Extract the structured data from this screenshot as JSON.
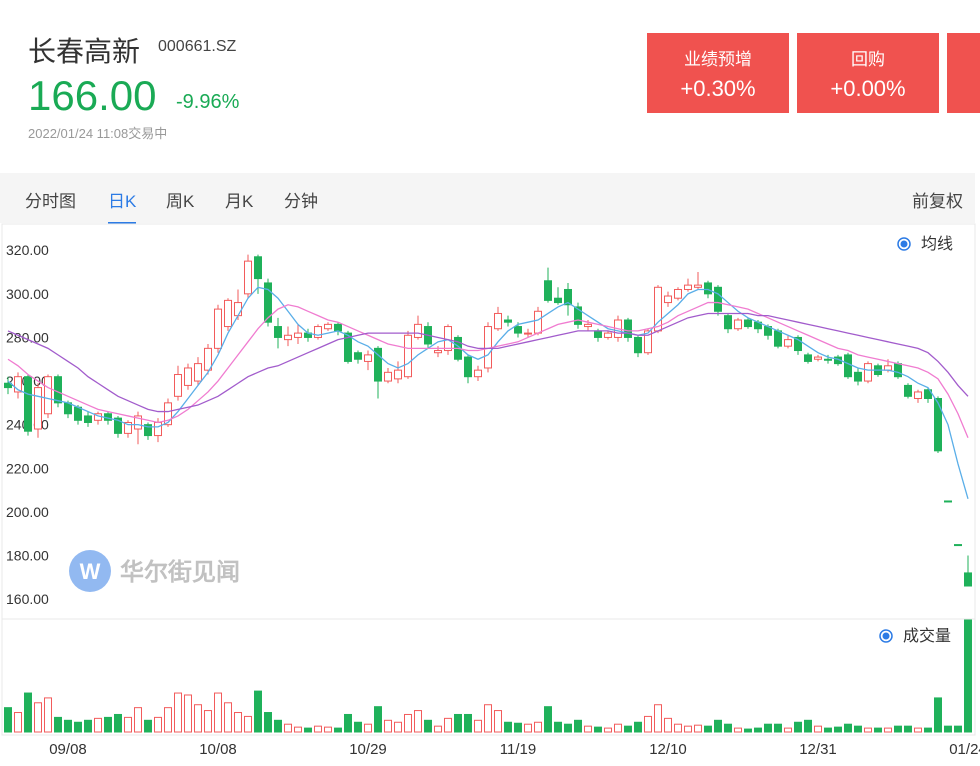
{
  "header": {
    "title": "长春高新",
    "code": "000661.SZ",
    "price": "166.00",
    "change": "-9.96%",
    "time": "2022/01/24 11:08交易中"
  },
  "badges": [
    {
      "label": "业绩预增",
      "value": "+0.30%"
    },
    {
      "label": "回购",
      "value": "+0.00%"
    }
  ],
  "tabs": [
    "分时图",
    "日K",
    "周K",
    "月K",
    "分钟"
  ],
  "active_tab": 1,
  "adjust": "前复权",
  "chart_data": {
    "type": "candlestick",
    "ma_legend": "均线",
    "volume_legend": "成交量",
    "watermark": "华尔街见闻",
    "up_color": "#f25b5b",
    "down_color": "#1fb15a",
    "categories": [
      null,
      null,
      null,
      null,
      null,
      null,
      "09/08",
      null,
      null,
      null,
      null,
      null,
      null,
      null,
      null,
      null,
      null,
      null,
      null,
      null,
      null,
      "10/08",
      null,
      null,
      null,
      null,
      null,
      null,
      null,
      null,
      null,
      null,
      null,
      null,
      null,
      null,
      "10/29",
      null,
      null,
      null,
      null,
      null,
      null,
      null,
      null,
      null,
      null,
      null,
      null,
      null,
      null,
      "11/19",
      null,
      null,
      null,
      null,
      null,
      null,
      null,
      null,
      null,
      null,
      null,
      null,
      null,
      null,
      "12/10",
      null,
      null,
      null,
      null,
      null,
      null,
      null,
      null,
      null,
      null,
      null,
      null,
      null,
      null,
      "12/31",
      null,
      null,
      null,
      null,
      null,
      null,
      null,
      null,
      null,
      null,
      null,
      null,
      null,
      null,
      "01/24"
    ],
    "open": [
      259,
      255,
      262,
      238,
      245,
      262,
      250,
      248,
      244,
      242,
      245,
      243,
      236,
      238,
      240,
      235,
      240,
      253,
      258,
      260,
      265,
      275,
      285,
      290,
      300,
      317,
      305,
      285,
      279,
      280,
      282,
      280,
      284,
      286,
      282,
      273,
      269,
      275,
      260,
      261,
      262,
      280,
      285,
      273,
      274,
      280,
      271,
      262,
      266,
      284,
      288,
      285,
      282,
      282,
      306,
      298,
      302,
      294,
      285,
      283,
      280,
      280,
      288,
      280,
      273,
      283,
      296,
      298,
      302,
      303,
      305,
      303,
      290,
      284,
      288,
      287,
      285,
      283,
      276,
      280,
      272,
      270,
      270,
      271,
      272,
      264,
      260,
      267,
      265,
      268,
      258,
      252,
      256,
      252,
      205,
      185,
      172
    ],
    "close": [
      257,
      262,
      237,
      257,
      262,
      250,
      245,
      242,
      241,
      245,
      242,
      236,
      241,
      244,
      235,
      241,
      250,
      263,
      266,
      268,
      275,
      293,
      297,
      296,
      315,
      307,
      287,
      280,
      281,
      282,
      280,
      285,
      286,
      283,
      269,
      270,
      272,
      260,
      264,
      265,
      281,
      286,
      277,
      274,
      285,
      270,
      262,
      265,
      285,
      291,
      287,
      282,
      282,
      292,
      297,
      296,
      295,
      286,
      286,
      280,
      282,
      288,
      280,
      273,
      283,
      303,
      299,
      302,
      304,
      304,
      300,
      292,
      284,
      288,
      285,
      284,
      281,
      276,
      279,
      274,
      269,
      271,
      270,
      268,
      262,
      260,
      268,
      263,
      267,
      262,
      253,
      255,
      252,
      228,
      205,
      185,
      166
    ],
    "high": [
      262,
      264,
      263,
      259,
      263,
      263,
      251,
      249,
      246,
      246,
      246,
      244,
      242,
      246,
      241,
      243,
      252,
      267,
      268,
      271,
      277,
      295,
      298,
      302,
      318,
      318,
      307,
      289,
      285,
      286,
      284,
      286,
      287,
      287,
      283,
      274,
      274,
      276,
      266,
      269,
      283,
      290,
      287,
      276,
      286,
      281,
      272,
      267,
      287,
      294,
      290,
      287,
      284,
      294,
      312,
      303,
      305,
      296,
      288,
      284,
      283,
      290,
      289,
      281,
      284,
      304,
      301,
      303,
      307,
      310,
      306,
      304,
      291,
      289,
      289,
      288,
      286,
      284,
      281,
      281,
      273,
      272,
      272,
      272,
      273,
      266,
      269,
      268,
      270,
      269,
      259,
      256,
      257,
      253,
      205,
      185,
      180
    ],
    "low": [
      254,
      252,
      235,
      234,
      243,
      248,
      243,
      240,
      239,
      240,
      240,
      234,
      234,
      231,
      233,
      232,
      239,
      251,
      256,
      258,
      263,
      273,
      283,
      288,
      298,
      300,
      285,
      275,
      276,
      277,
      278,
      279,
      283,
      281,
      268,
      268,
      265,
      252,
      259,
      259,
      261,
      279,
      275,
      271,
      272,
      269,
      259,
      260,
      264,
      283,
      285,
      280,
      280,
      281,
      296,
      295,
      290,
      284,
      283,
      278,
      279,
      278,
      278,
      271,
      272,
      282,
      294,
      297,
      301,
      302,
      298,
      290,
      282,
      283,
      284,
      282,
      279,
      275,
      275,
      272,
      268,
      269,
      268,
      267,
      261,
      258,
      259,
      262,
      264,
      261,
      252,
      250,
      250,
      227,
      205,
      185,
      166
    ],
    "volume": [
      25,
      20,
      40,
      30,
      35,
      15,
      12,
      10,
      12,
      14,
      15,
      18,
      15,
      25,
      12,
      15,
      25,
      40,
      38,
      28,
      22,
      40,
      30,
      20,
      16,
      42,
      20,
      12,
      8,
      5,
      4,
      6,
      5,
      4,
      18,
      10,
      8,
      26,
      12,
      10,
      18,
      22,
      12,
      6,
      14,
      18,
      18,
      12,
      28,
      22,
      10,
      9,
      8,
      10,
      26,
      10,
      8,
      12,
      6,
      5,
      4,
      8,
      6,
      10,
      16,
      28,
      14,
      8,
      6,
      7,
      6,
      12,
      8,
      4,
      3,
      4,
      8,
      8,
      4,
      10,
      12,
      6,
      4,
      5,
      8,
      6,
      4,
      4,
      4,
      6,
      6,
      4,
      4,
      35,
      6,
      6,
      115
    ],
    "vlim": [
      0,
      115
    ],
    "lines": [
      {
        "color": "#5aaee8",
        "values": [
          260,
          256,
          254,
          253,
          252,
          251,
          250,
          248,
          246,
          244,
          243,
          242,
          240,
          240,
          239,
          239,
          241,
          246,
          252,
          258,
          264,
          272,
          282,
          290,
          298,
          303,
          302,
          298,
          292,
          286,
          282,
          281,
          282,
          283,
          281,
          278,
          276,
          272,
          268,
          266,
          268,
          272,
          275,
          278,
          279,
          276,
          272,
          270,
          272,
          278,
          283,
          286,
          287,
          288,
          291,
          294,
          296,
          293,
          290,
          287,
          284,
          283,
          282,
          281,
          282,
          287,
          291,
          295,
          300,
          302,
          302,
          300,
          296,
          292,
          289,
          287,
          285,
          283,
          281,
          279,
          276,
          273,
          271,
          270,
          268,
          266,
          265,
          265,
          265,
          264,
          262,
          259,
          257,
          250,
          240,
          222,
          206
        ]
      },
      {
        "color": "#f07cd0",
        "values": [
          270,
          267,
          263,
          260,
          257,
          255,
          253,
          251,
          249,
          247,
          246,
          245,
          244,
          243,
          242,
          241,
          242,
          244,
          247,
          251,
          255,
          260,
          266,
          272,
          278,
          284,
          289,
          293,
          295,
          294,
          292,
          290,
          288,
          287,
          285,
          283,
          281,
          279,
          277,
          276,
          275,
          275,
          275,
          275,
          275,
          275,
          274,
          274,
          275,
          276,
          277,
          278,
          280,
          282,
          284,
          286,
          287,
          288,
          287,
          286,
          285,
          284,
          283,
          283,
          284,
          285,
          287,
          290,
          292,
          294,
          296,
          296,
          295,
          294,
          293,
          291,
          289,
          287,
          285,
          283,
          281,
          279,
          277,
          275,
          274,
          272,
          271,
          270,
          269,
          268,
          267,
          266,
          264,
          261,
          254,
          245,
          234
        ]
      },
      {
        "color": "#a25ccc",
        "values": [
          283,
          281,
          279,
          277,
          275,
          272,
          269,
          266,
          262,
          259,
          256,
          253,
          251,
          249,
          247,
          246,
          246,
          247,
          248,
          249,
          251,
          253,
          256,
          259,
          262,
          264,
          266,
          267,
          269,
          271,
          273,
          275,
          277,
          279,
          280,
          281,
          282,
          282,
          282,
          282,
          282,
          282,
          281,
          280,
          279,
          278,
          276,
          275,
          275,
          275,
          276,
          277,
          278,
          279,
          280,
          281,
          282,
          283,
          283,
          283,
          283,
          282,
          282,
          281,
          281,
          283,
          285,
          287,
          289,
          290,
          291,
          291,
          291,
          291,
          291,
          290,
          290,
          289,
          288,
          287,
          286,
          285,
          284,
          283,
          282,
          281,
          280,
          279,
          278,
          277,
          276,
          275,
          273,
          269,
          264,
          258,
          253
        ]
      }
    ],
    "ylim": [
      152.7,
      330.2
    ],
    "yticks": [
      {
        "value": 320,
        "label": "320.00"
      },
      {
        "value": 300,
        "label": "300.00"
      },
      {
        "value": 280,
        "label": "280.00"
      },
      {
        "value": 260,
        "label": "260.00"
      },
      {
        "value": 240,
        "label": "240.00"
      },
      {
        "value": 220,
        "label": "220.00"
      },
      {
        "value": 200,
        "label": "200.00"
      },
      {
        "value": 180,
        "label": "180.00"
      },
      {
        "value": 160,
        "label": "160.00"
      }
    ]
  }
}
